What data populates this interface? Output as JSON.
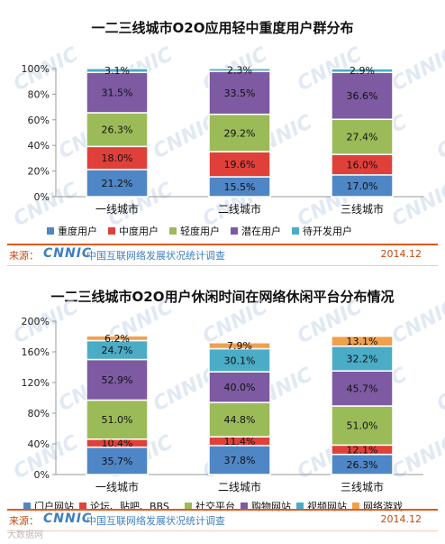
{
  "chart_data": [
    {
      "type": "bar",
      "stacked": true,
      "title": "一二三线城市O2O应用轻中重度用户群分布",
      "categories": [
        "一线城市",
        "二线城市",
        "三线城市"
      ],
      "ylim": [
        0,
        100
      ],
      "yticks": [
        "0%",
        "20%",
        "40%",
        "60%",
        "80%",
        "100%"
      ],
      "ytick_values": [
        0,
        20,
        40,
        60,
        80,
        100
      ],
      "series": [
        {
          "name": "重度用户",
          "color": "#4f86c6",
          "values": [
            21.2,
            15.5,
            17.0
          ],
          "labels": [
            "21.2%",
            "15.5%",
            "17.0%"
          ]
        },
        {
          "name": "中度用户",
          "color": "#e0403a",
          "values": [
            18.0,
            19.6,
            16.0
          ],
          "labels": [
            "18.0%",
            "19.6%",
            "16.0%"
          ]
        },
        {
          "name": "轻度用户",
          "color": "#9bbb59",
          "values": [
            26.3,
            29.2,
            27.4
          ],
          "labels": [
            "26.3%",
            "29.2%",
            "27.4%"
          ]
        },
        {
          "name": "潜在用户",
          "color": "#7d5aa2",
          "values": [
            31.5,
            33.5,
            36.6
          ],
          "labels": [
            "31.5%",
            "33.5%",
            "36.6%"
          ]
        },
        {
          "name": "待开发用户",
          "color": "#4bacc6",
          "values": [
            3.1,
            2.3,
            2.9
          ],
          "labels": [
            "3.1%",
            "2.3%",
            "2.9%"
          ]
        }
      ],
      "legend_position": "bottom",
      "grid": false
    },
    {
      "type": "bar",
      "stacked": true,
      "title": "一二三线城市O2O用户休闲时间在网络休闲平台分布情况",
      "categories": [
        "一线城市",
        "二线城市",
        "三线城市"
      ],
      "ylim": [
        0,
        200
      ],
      "yticks": [
        "0%",
        "40%",
        "80%",
        "120%",
        "160%",
        "200%"
      ],
      "ytick_values": [
        0,
        40,
        80,
        120,
        160,
        200
      ],
      "series": [
        {
          "name": "门户网站",
          "color": "#4f86c6",
          "values": [
            35.7,
            37.8,
            26.3
          ],
          "labels": [
            "35.7%",
            "37.8%",
            "26.3%"
          ]
        },
        {
          "name": "论坛、贴吧、BBS",
          "color": "#e0403a",
          "values": [
            10.4,
            11.4,
            12.1
          ],
          "labels": [
            "10.4%",
            "11.4%",
            "12.1%"
          ]
        },
        {
          "name": "社交平台",
          "color": "#9bbb59",
          "values": [
            51.0,
            44.8,
            51.0
          ],
          "labels": [
            "51.0%",
            "44.8%",
            "51.0%"
          ]
        },
        {
          "name": "购物网站",
          "color": "#7d5aa2",
          "values": [
            52.9,
            40.0,
            45.7
          ],
          "labels": [
            "52.9%",
            "40.0%",
            "45.7%"
          ]
        },
        {
          "name": "视频网站",
          "color": "#4bacc6",
          "values": [
            24.7,
            30.1,
            32.2
          ],
          "labels": [
            "24.7%",
            "30.1%",
            "32.2%"
          ]
        },
        {
          "name": "网络游戏",
          "color": "#f0a04b",
          "values": [
            6.2,
            7.9,
            13.1
          ],
          "labels": [
            "6.2%",
            "7.9%",
            "13.1%"
          ]
        }
      ],
      "legend_position": "bottom",
      "grid": false
    }
  ],
  "footer": {
    "source_label": "来源：",
    "logo_text": "CNNIC",
    "org_text": "中国互联网络发展状况统计调查",
    "date": "2014.12"
  },
  "watermark": "CNNIC",
  "bottom_mark": "大数据网"
}
